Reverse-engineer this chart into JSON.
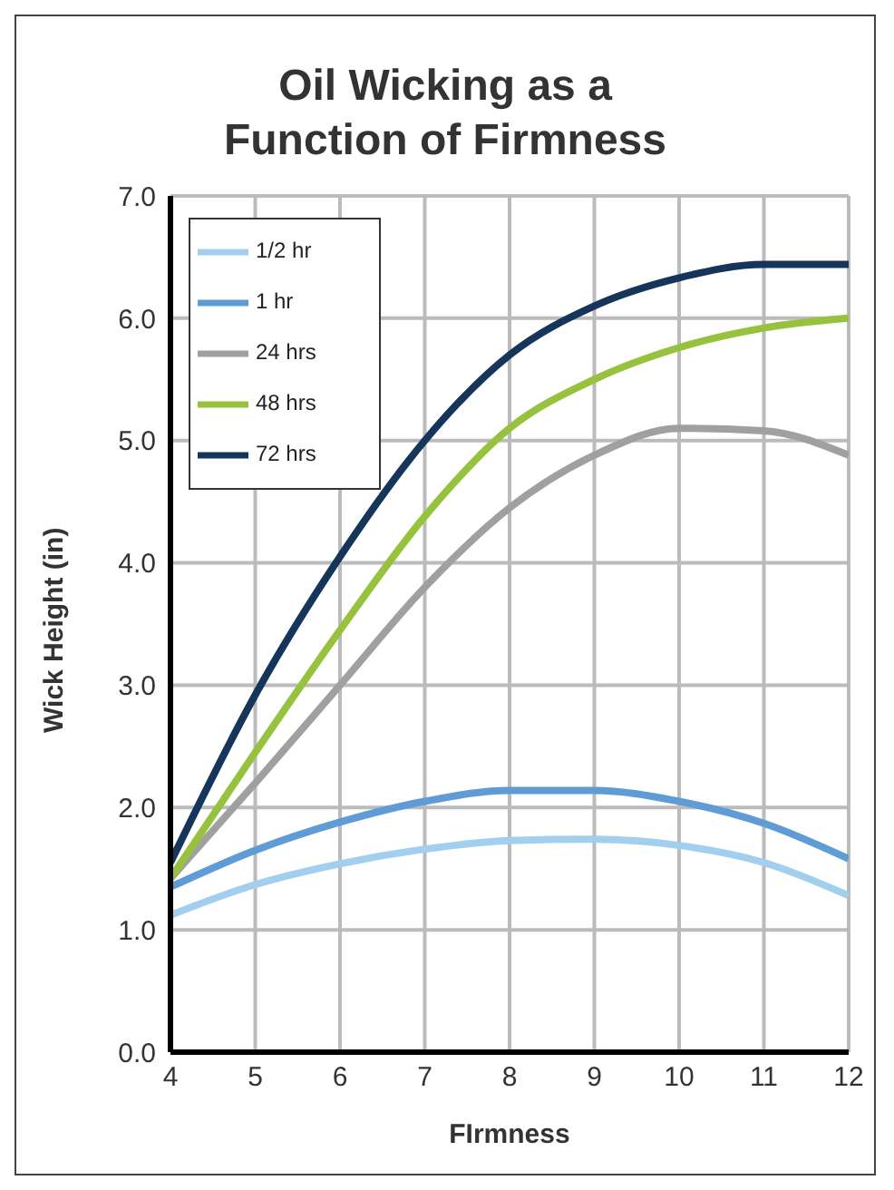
{
  "chart_data": {
    "type": "line",
    "title": "Oil Wicking as a Function of Firmness",
    "xlabel": "FIrmness",
    "ylabel": "Wick Height (in)",
    "x": [
      4,
      5,
      6,
      7,
      8,
      9,
      10,
      11,
      12
    ],
    "series": [
      {
        "name": "1/2 hr",
        "color": "#a3cfee",
        "values": [
          1.12,
          1.37,
          1.54,
          1.66,
          1.73,
          1.74,
          1.69,
          1.55,
          1.28
        ]
      },
      {
        "name": "1 hr",
        "color": "#5f9bd5",
        "values": [
          1.35,
          1.65,
          1.88,
          2.05,
          2.14,
          2.14,
          2.05,
          1.87,
          1.58
        ]
      },
      {
        "name": "24 hrs",
        "color": "#a0a0a0",
        "values": [
          1.42,
          2.2,
          3.0,
          3.8,
          4.45,
          4.88,
          5.1,
          5.08,
          4.88
        ]
      },
      {
        "name": "48 hrs",
        "color": "#97c23d",
        "values": [
          1.42,
          2.45,
          3.45,
          4.38,
          5.1,
          5.5,
          5.76,
          5.92,
          6.0
        ]
      },
      {
        "name": "72 hrs",
        "color": "#15355a",
        "values": [
          1.55,
          2.92,
          4.05,
          5.0,
          5.7,
          6.1,
          6.33,
          6.44,
          6.44
        ]
      }
    ],
    "xlim": [
      4,
      12
    ],
    "xticks": [
      4,
      5,
      6,
      7,
      8,
      9,
      10,
      11,
      12
    ],
    "ylim": [
      0,
      7
    ],
    "yticks": [
      {
        "value": 0,
        "label": "0.0"
      },
      {
        "value": 1,
        "label": "1.0"
      },
      {
        "value": 2,
        "label": "2.0"
      },
      {
        "value": 3,
        "label": "3.0"
      },
      {
        "value": 4,
        "label": "4.0"
      },
      {
        "value": 5,
        "label": "5.0"
      },
      {
        "value": 6,
        "label": "6.0"
      },
      {
        "value": 7,
        "label": "7.0"
      }
    ],
    "grid": true,
    "legend": "top left",
    "marker": "none",
    "line_style": "solid"
  }
}
